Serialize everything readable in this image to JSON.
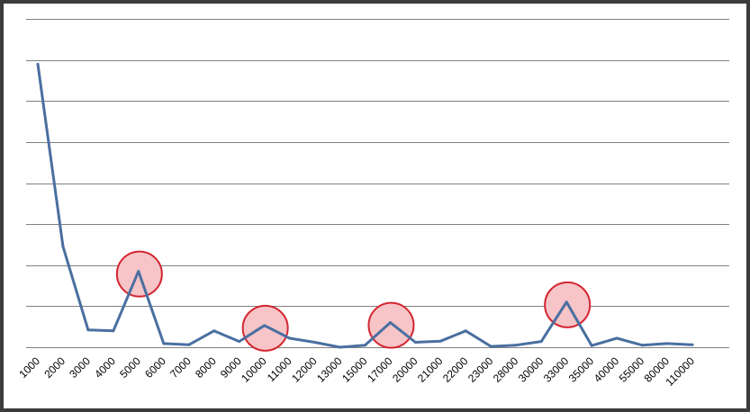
{
  "chart_data": {
    "type": "line",
    "title": "",
    "xlabel": "",
    "ylabel": "",
    "categories": [
      "1000",
      "2000",
      "3000",
      "4000",
      "5000",
      "6000",
      "7000",
      "8000",
      "9000",
      "10000",
      "11000",
      "12000",
      "13000",
      "15000",
      "17000",
      "20000",
      "21000",
      "22000",
      "23000",
      "28000",
      "30000",
      "33000",
      "35000",
      "40000",
      "55000",
      "80000",
      "110000"
    ],
    "series": [
      {
        "values": [
          6.9,
          2.45,
          0.42,
          0.4,
          1.85,
          0.09,
          0.06,
          0.4,
          0.14,
          0.53,
          0.22,
          0.12,
          0.0,
          0.05,
          0.6,
          0.12,
          0.15,
          0.4,
          0.02,
          0.05,
          0.14,
          1.1,
          0.04,
          0.22,
          0.05,
          0.09,
          0.06
        ],
        "color": "#4a6fa0"
      }
    ],
    "y_gridlines": 8,
    "y_tick_labels_shown": false,
    "ylim": [
      0,
      8
    ],
    "grid": true,
    "legend": "none",
    "highlighted_points": [
      {
        "category": "5000"
      },
      {
        "category": "10000"
      },
      {
        "category": "17000"
      },
      {
        "category": "33000"
      }
    ],
    "highlight_fill": "#f7c4c8",
    "highlight_stroke": "#d22630",
    "gridline_color": "#808080"
  }
}
